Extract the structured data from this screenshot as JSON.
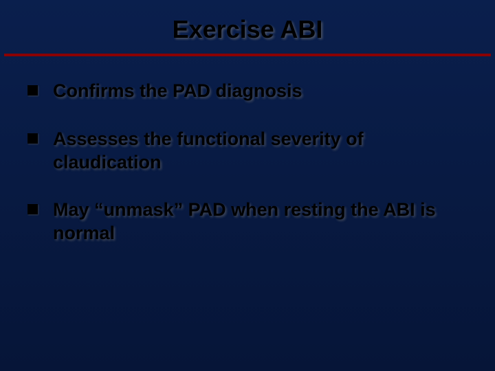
{
  "slide": {
    "title": "Exercise ABI",
    "title_color": "#000000",
    "title_fontsize": 36,
    "divider_color": "#8b0000",
    "background_gradient": [
      "#0a1f4d",
      "#081a42",
      "#061538"
    ],
    "bullets": [
      {
        "text": "Confirms the PAD diagnosis"
      },
      {
        "text": "Assesses the functional severity of claudication"
      },
      {
        "text": "May “unmask” PAD when resting the ABI is normal"
      }
    ],
    "bullet_marker_color": "#000000",
    "bullet_text_color": "#000000",
    "bullet_fontsize": 27
  }
}
